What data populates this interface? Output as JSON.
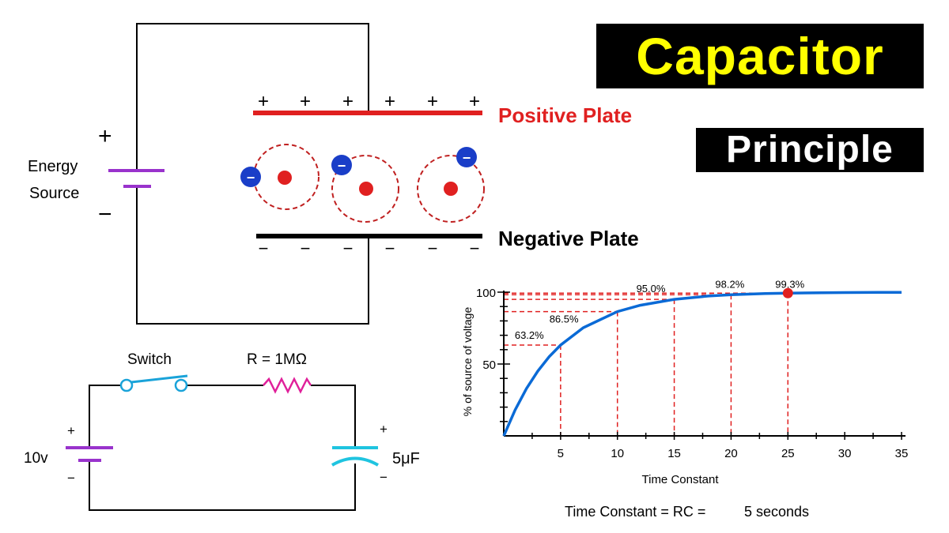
{
  "title": {
    "main": "Capacitor",
    "sub": "Principle"
  },
  "colors": {
    "title_bg": "#000000",
    "title_yellow": "#ffff00",
    "positive": "#e02020",
    "negative": "#000000",
    "electron": "#1a3ec8",
    "battery": "#9933cc",
    "wire": "#000000",
    "switch": "#1aa3d9",
    "resistor": "#e0209a",
    "capacitor": "#1fc4e0",
    "curve": "#0a6ad6",
    "guides": "#e02020"
  },
  "top_diagram": {
    "energy_source": {
      "line1": "Energy",
      "line2": "Source",
      "plus": "+",
      "minus": "−"
    },
    "positive_plate_label": "Positive Plate",
    "negative_plate_label": "Negative Plate",
    "plate_charges_top": [
      "+",
      "+",
      "+",
      "+",
      "+",
      "+"
    ],
    "plate_charges_bottom": [
      "−",
      "−",
      "−",
      "−",
      "−",
      "−"
    ],
    "electron_symbol": "−"
  },
  "bottom_circuit": {
    "switch_label": "Switch",
    "resistor_label": "R = 1MΩ",
    "battery_label": "10v",
    "capacitor_label": "5μF",
    "battery_plus": "+",
    "battery_minus": "−",
    "cap_plus": "+",
    "cap_minus": "−"
  },
  "chart_data": {
    "type": "line",
    "title": "",
    "xlabel": "Time Constant",
    "ylabel": "% of source of voltage",
    "xlim": [
      0,
      35
    ],
    "ylim": [
      0,
      100
    ],
    "x_ticks": [
      5,
      10,
      15,
      20,
      25,
      30,
      35
    ],
    "y_ticks": [
      50,
      100
    ],
    "series": [
      {
        "x": [
          0,
          1,
          2,
          3,
          4,
          5,
          7,
          10,
          12,
          15,
          18,
          20,
          23,
          25,
          28,
          30,
          33,
          35
        ],
        "y": [
          0,
          18.1,
          32.9,
          45.1,
          55.1,
          63.2,
          75.3,
          86.5,
          90.9,
          95.0,
          97.3,
          98.2,
          99.0,
          99.3,
          99.6,
          99.75,
          99.86,
          99.9
        ]
      }
    ],
    "annotations": [
      {
        "x": 5,
        "y": 63.2,
        "label": "63.2%"
      },
      {
        "x": 10,
        "y": 86.5,
        "label": "86.5%"
      },
      {
        "x": 15,
        "y": 95.0,
        "label": "95.0%"
      },
      {
        "x": 20,
        "y": 98.2,
        "label": "98.2%"
      },
      {
        "x": 25,
        "y": 99.3,
        "label": "99.3%"
      }
    ],
    "highlight_point": {
      "x": 25,
      "y": 99.3
    },
    "formula": {
      "lhs": "Time Constant = RC =",
      "rhs": "5 seconds"
    }
  }
}
